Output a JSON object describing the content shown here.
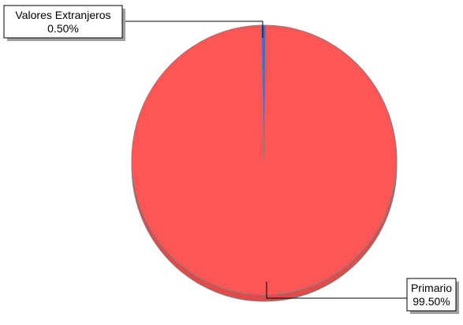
{
  "chart_data": {
    "type": "pie",
    "title": "",
    "slices": [
      {
        "label": "Primario",
        "percent_label": "99.50%",
        "value": 99.5,
        "color": "#ff5555"
      },
      {
        "label": "Valores Extranjeros",
        "percent_label": "0.50%",
        "value": 0.5,
        "color": "#5a5ae0"
      }
    ],
    "legend": "none",
    "style": "3d-tilted"
  }
}
